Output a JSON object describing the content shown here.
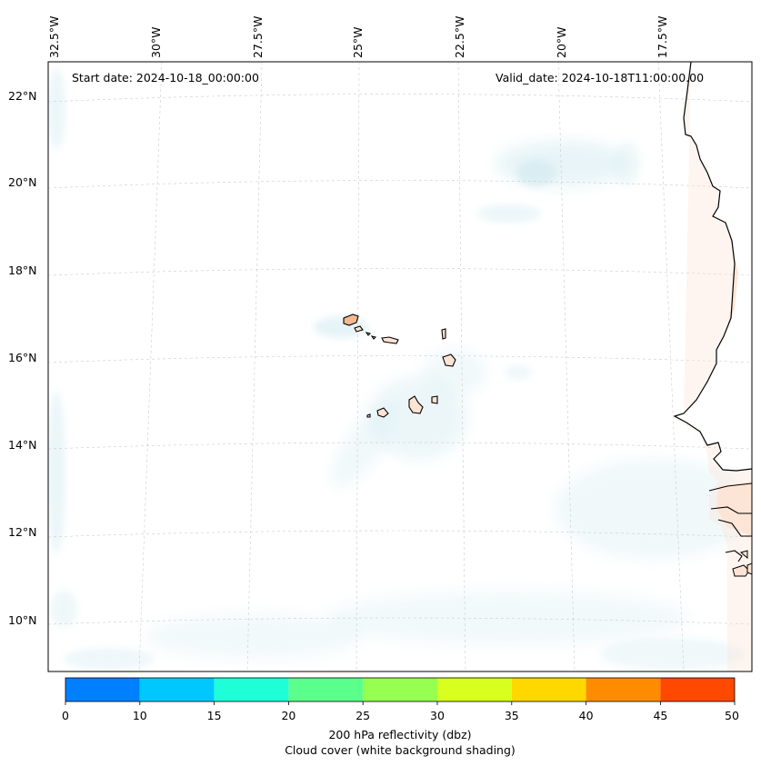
{
  "map": {
    "start_date": "Start date: 2024-10-18_00:00:00",
    "valid_date": "Valid_date: 2024-10-18T11:00:00.00",
    "longitude_labels": [
      "32.5°W",
      "30°W",
      "27.5°W",
      "25°W",
      "22.5°W",
      "20°W",
      "17.5°W"
    ],
    "latitude_labels": [
      "22°N",
      "20°N",
      "18°N",
      "16°N",
      "14°N",
      "12°N",
      "10°N"
    ]
  },
  "colorbar": {
    "tick_labels": [
      "0",
      "10",
      "15",
      "20",
      "25",
      "30",
      "35",
      "40",
      "45",
      "50"
    ],
    "colors": [
      "#0080ff",
      "#00c8ff",
      "#1effd8",
      "#5aff8c",
      "#96ff50",
      "#d8ff1e",
      "#ffd800",
      "#ff8c00",
      "#ff4800"
    ],
    "label_line1": "200 hPa reflectivity (dbz)",
    "label_line2": "Cloud cover (white background shading)"
  },
  "style": {
    "cloud_color": "#d6ecf2",
    "land_color": "#fde3d3",
    "coast_color": "#000000",
    "grid_color": "#cccccc"
  }
}
